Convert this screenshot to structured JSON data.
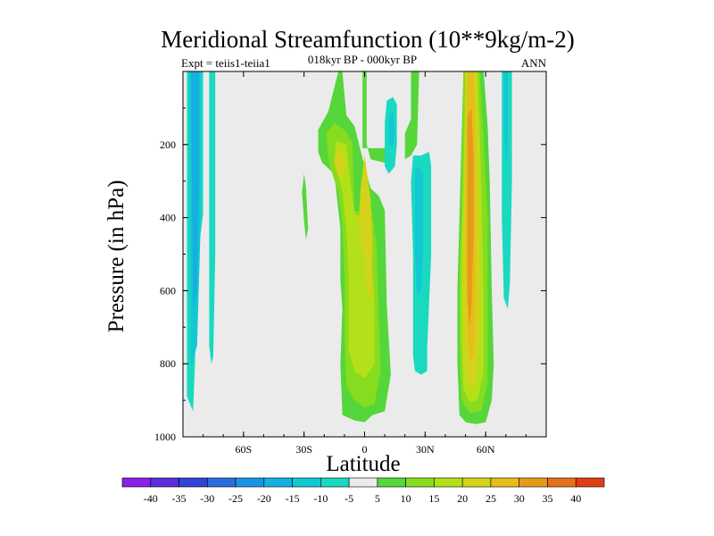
{
  "chart_data": {
    "type": "heatmap",
    "title": "Meridional Streamfunction (10**9kg/m-2)",
    "subtitle": "018kyr BP - 000kyr BP",
    "left_label": "Expt = teiis1-teiia1",
    "right_label": "ANN",
    "xlabel": "Latitude",
    "ylabel": "Pressure (in hPa)",
    "xlim": [
      -90,
      90
    ],
    "ylim": [
      1000,
      0
    ],
    "y_inverted": true,
    "x_ticks": [
      {
        "value": -60,
        "label": "60S"
      },
      {
        "value": -30,
        "label": "30S"
      },
      {
        "value": 0,
        "label": "0"
      },
      {
        "value": 30,
        "label": "30N"
      },
      {
        "value": 60,
        "label": "60N"
      }
    ],
    "y_ticks": [
      200,
      400,
      600,
      800,
      1000
    ],
    "colorbar": {
      "labels": [
        "-40",
        "-35",
        "-30",
        "-25",
        "-20",
        "-15",
        "-10",
        "-5",
        "5",
        "10",
        "15",
        "20",
        "25",
        "30",
        "35",
        "40"
      ],
      "colors": [
        "#8a1fe6",
        "#5a2dd8",
        "#2f45d4",
        "#2b6de0",
        "#1a95e6",
        "#16b0e0",
        "#12c8d2",
        "#19d9c0",
        "#ebebeb",
        "#55d63a",
        "#86dc1e",
        "#b4e01a",
        "#d4d21a",
        "#e6bd1a",
        "#e69a1a",
        "#e6701a",
        "#e03d14"
      ]
    },
    "background_color": "#ebebeb",
    "features": [
      {
        "kind": "polygon",
        "level": "-5",
        "points": [
          [
            -88,
            0
          ],
          [
            -80,
            0
          ],
          [
            -80,
            390
          ],
          [
            -83,
            520
          ],
          [
            -84,
            790
          ],
          [
            -85,
            930
          ],
          [
            -88,
            890
          ]
        ]
      },
      {
        "kind": "polygon",
        "level": "-10",
        "points": [
          [
            -87,
            0
          ],
          [
            -81,
            0
          ],
          [
            -81,
            380
          ],
          [
            -83,
            750
          ],
          [
            -86,
            810
          ]
        ]
      },
      {
        "kind": "polygon",
        "level": "-15",
        "points": [
          [
            -86,
            0
          ],
          [
            -82,
            0
          ],
          [
            -82,
            300
          ],
          [
            -83,
            600
          ],
          [
            -85,
            650
          ]
        ]
      },
      {
        "kind": "polygon",
        "level": "-5",
        "points": [
          [
            -77,
            0
          ],
          [
            -74,
            0
          ],
          [
            -74,
            500
          ],
          [
            -75,
            780
          ],
          [
            -76,
            800
          ],
          [
            -77,
            750
          ]
        ]
      },
      {
        "kind": "polygon",
        "level": "5",
        "points": [
          [
            -30,
            280
          ],
          [
            -29,
            320
          ],
          [
            -28,
            430
          ],
          [
            -29,
            460
          ],
          [
            -30,
            410
          ],
          [
            -31,
            330
          ]
        ]
      },
      {
        "kind": "polygon",
        "level": "5",
        "points": [
          [
            -13,
            0
          ],
          [
            -11,
            0
          ],
          [
            -9,
            120
          ],
          [
            -5,
            150
          ],
          [
            0,
            260
          ],
          [
            3,
            320
          ],
          [
            7,
            340
          ],
          [
            10,
            380
          ],
          [
            11,
            640
          ],
          [
            13,
            830
          ],
          [
            10,
            930
          ],
          [
            4,
            940
          ],
          [
            0,
            960
          ],
          [
            -5,
            955
          ],
          [
            -11,
            940
          ],
          [
            -12,
            800
          ],
          [
            -11,
            650
          ],
          [
            -12,
            570
          ],
          [
            -12,
            430
          ],
          [
            -15,
            280
          ],
          [
            -21,
            250
          ],
          [
            -23,
            220
          ],
          [
            -23,
            160
          ],
          [
            -18,
            110
          ]
        ]
      },
      {
        "kind": "polygon",
        "level": "5",
        "points": [
          [
            -1,
            0
          ],
          [
            1,
            0
          ],
          [
            1,
            200
          ],
          [
            3,
            240
          ],
          [
            10,
            250
          ],
          [
            15,
            180
          ],
          [
            15,
            120
          ],
          [
            12,
            100
          ],
          [
            10,
            210
          ],
          [
            -1,
            210
          ]
        ]
      },
      {
        "kind": "polygon",
        "level": "5",
        "points": [
          [
            23,
            0
          ],
          [
            27,
            0
          ],
          [
            26,
            200
          ],
          [
            23,
            230
          ],
          [
            20,
            240
          ],
          [
            20,
            170
          ],
          [
            23,
            130
          ]
        ]
      },
      {
        "kind": "polygon",
        "level": "10",
        "points": [
          [
            -15,
            140
          ],
          [
            -10,
            160
          ],
          [
            -6,
            195
          ],
          [
            -5,
            380
          ],
          [
            0,
            390
          ],
          [
            3,
            360
          ],
          [
            6,
            480
          ],
          [
            7,
            660
          ],
          [
            8,
            820
          ],
          [
            5,
            910
          ],
          [
            0,
            920
          ],
          [
            -5,
            900
          ],
          [
            -9,
            860
          ],
          [
            -10,
            720
          ],
          [
            -10,
            560
          ],
          [
            -11,
            420
          ],
          [
            -13,
            330
          ],
          [
            -16,
            280
          ],
          [
            -18,
            240
          ],
          [
            -19,
            170
          ]
        ]
      },
      {
        "kind": "polygon",
        "level": "15",
        "points": [
          [
            -14,
            190
          ],
          [
            -9,
            200
          ],
          [
            -8,
            260
          ],
          [
            -5,
            390
          ],
          [
            0,
            400
          ],
          [
            3,
            470
          ],
          [
            5,
            640
          ],
          [
            5,
            800
          ],
          [
            0,
            840
          ],
          [
            -5,
            820
          ],
          [
            -8,
            760
          ],
          [
            -8,
            560
          ],
          [
            -9,
            430
          ],
          [
            -11,
            330
          ],
          [
            -13,
            280
          ],
          [
            -15,
            240
          ]
        ]
      },
      {
        "kind": "polygon",
        "level": "20",
        "points": [
          [
            -13,
            210
          ],
          [
            -10,
            230
          ],
          [
            -10,
            280
          ],
          [
            -13,
            290
          ],
          [
            -15,
            250
          ]
        ]
      },
      {
        "kind": "polygon",
        "level": "20",
        "points": [
          [
            0,
            230
          ],
          [
            3,
            350
          ],
          [
            4,
            480
          ],
          [
            3,
            620
          ],
          [
            1,
            600
          ],
          [
            0,
            510
          ],
          [
            -3,
            420
          ],
          [
            -2,
            320
          ]
        ]
      },
      {
        "kind": "polygon",
        "level": "-5",
        "points": [
          [
            11,
            80
          ],
          [
            14,
            70
          ],
          [
            16,
            90
          ],
          [
            16,
            200
          ],
          [
            15,
            260
          ],
          [
            12,
            280
          ],
          [
            10,
            260
          ],
          [
            10,
            140
          ]
        ]
      },
      {
        "kind": "polygon",
        "level": "-10",
        "points": [
          [
            12,
            120
          ],
          [
            14,
            110
          ],
          [
            15,
            160
          ],
          [
            14,
            210
          ],
          [
            12,
            200
          ]
        ]
      },
      {
        "kind": "polygon",
        "level": "-5",
        "points": [
          [
            24,
            230
          ],
          [
            28,
            230
          ],
          [
            32,
            220
          ],
          [
            33,
            260
          ],
          [
            33,
            500
          ],
          [
            31,
            760
          ],
          [
            31,
            820
          ],
          [
            28,
            830
          ],
          [
            25,
            820
          ],
          [
            24,
            780
          ],
          [
            24,
            500
          ],
          [
            23,
            300
          ]
        ]
      },
      {
        "kind": "polygon",
        "level": "-10",
        "points": [
          [
            25,
            270
          ],
          [
            27,
            260
          ],
          [
            29,
            280
          ],
          [
            29,
            480
          ],
          [
            28,
            600
          ],
          [
            26,
            610
          ],
          [
            25,
            500
          ]
        ]
      },
      {
        "kind": "polygon",
        "level": "5",
        "points": [
          [
            49,
            0
          ],
          [
            59,
            0
          ],
          [
            61,
            150
          ],
          [
            62,
            300
          ],
          [
            63,
            600
          ],
          [
            64,
            800
          ],
          [
            63,
            900
          ],
          [
            60,
            960
          ],
          [
            55,
            965
          ],
          [
            50,
            960
          ],
          [
            47,
            940
          ],
          [
            46,
            800
          ],
          [
            46,
            600
          ],
          [
            47,
            400
          ],
          [
            48,
            200
          ]
        ]
      },
      {
        "kind": "polygon",
        "level": "10",
        "points": [
          [
            49,
            0
          ],
          [
            57,
            0
          ],
          [
            59,
            200
          ],
          [
            61,
            400
          ],
          [
            61,
            650
          ],
          [
            61,
            850
          ],
          [
            58,
            930
          ],
          [
            52,
            935
          ],
          [
            48,
            900
          ],
          [
            47,
            750
          ],
          [
            47,
            550
          ],
          [
            48,
            350
          ]
        ]
      },
      {
        "kind": "polygon",
        "level": "15",
        "points": [
          [
            50,
            0
          ],
          [
            56,
            0
          ],
          [
            57,
            150
          ],
          [
            58,
            350
          ],
          [
            59,
            600
          ],
          [
            59,
            820
          ],
          [
            56,
            900
          ],
          [
            52,
            905
          ],
          [
            49,
            870
          ],
          [
            48,
            720
          ],
          [
            48,
            500
          ],
          [
            49,
            300
          ]
        ]
      },
      {
        "kind": "polygon",
        "level": "20",
        "points": [
          [
            50,
            0
          ],
          [
            55,
            0
          ],
          [
            56,
            200
          ],
          [
            57,
            450
          ],
          [
            57,
            720
          ],
          [
            55,
            860
          ],
          [
            52,
            865
          ],
          [
            50,
            820
          ],
          [
            49,
            650
          ],
          [
            49,
            420
          ],
          [
            50,
            200
          ]
        ]
      },
      {
        "kind": "polygon",
        "level": "25",
        "points": [
          [
            51,
            0
          ],
          [
            54,
            0
          ],
          [
            55,
            200
          ],
          [
            55,
            420
          ],
          [
            55,
            640
          ],
          [
            54,
            780
          ],
          [
            52,
            790
          ],
          [
            51,
            700
          ],
          [
            50,
            500
          ],
          [
            50,
            250
          ]
        ]
      },
      {
        "kind": "polygon",
        "level": "30",
        "points": [
          [
            51,
            120
          ],
          [
            53,
            100
          ],
          [
            54,
            240
          ],
          [
            54,
            450
          ],
          [
            53,
            640
          ],
          [
            52,
            700
          ],
          [
            51,
            620
          ],
          [
            51,
            400
          ]
        ]
      },
      {
        "kind": "polygon",
        "level": "-5",
        "points": [
          [
            68,
            0
          ],
          [
            73,
            0
          ],
          [
            73,
            300
          ],
          [
            72,
            580
          ],
          [
            71,
            650
          ],
          [
            69,
            620
          ],
          [
            68,
            400
          ]
        ]
      },
      {
        "kind": "polygon",
        "level": "-10",
        "points": [
          [
            69,
            0
          ],
          [
            71,
            0
          ],
          [
            71,
            200
          ],
          [
            70,
            260
          ],
          [
            69,
            150
          ]
        ]
      }
    ]
  }
}
